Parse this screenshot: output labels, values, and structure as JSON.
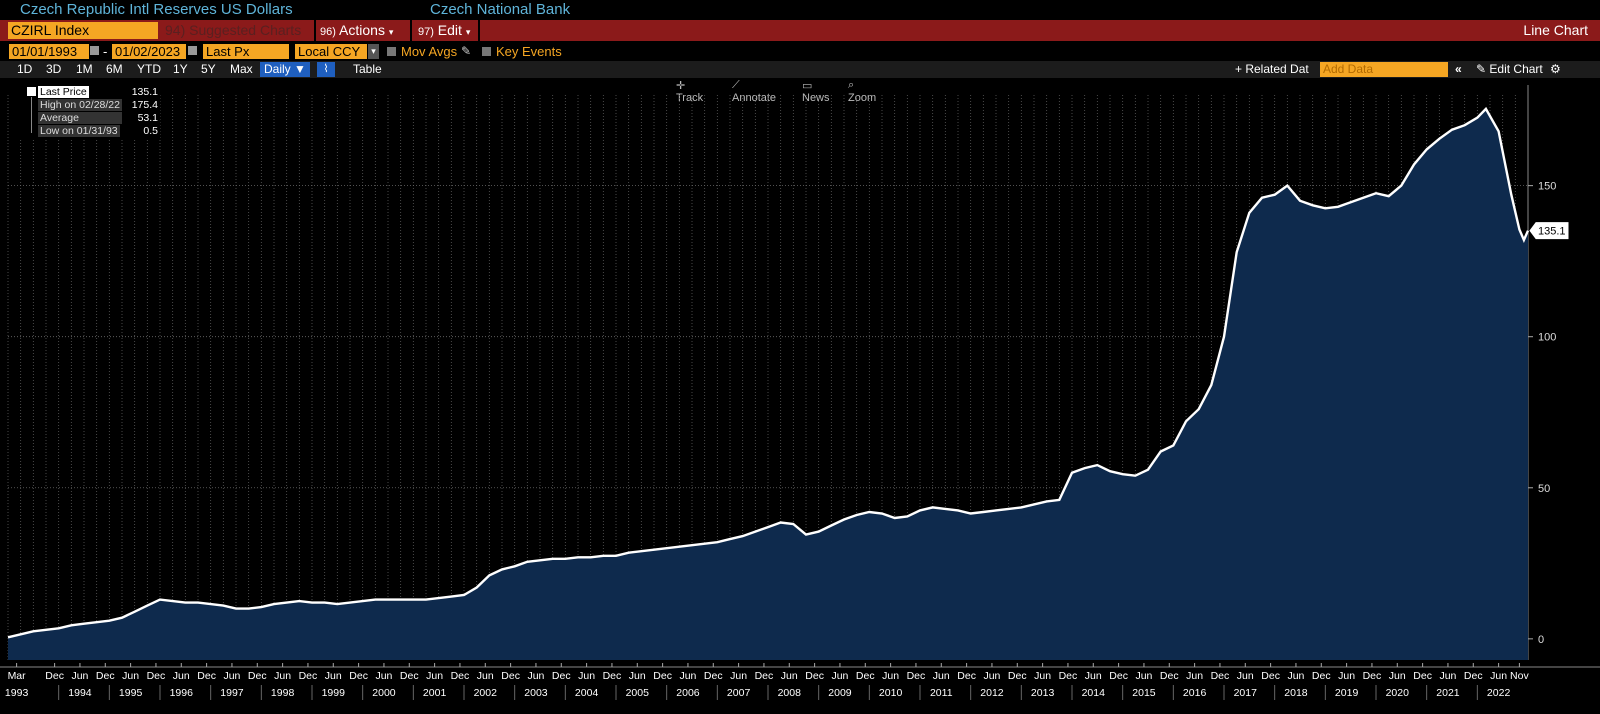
{
  "header": {
    "title": "Czech Republic Intl Reserves US Dollars",
    "source": "Czech National Bank"
  },
  "menu": {
    "ticker": "CZIRL Index",
    "suggested_num": "94)",
    "suggested": "Suggested Charts",
    "actions_num": "96)",
    "actions": "Actions",
    "edit_num": "97)",
    "edit": "Edit",
    "chart_type": "Line Chart"
  },
  "options": {
    "start_date": "01/01/1993",
    "end_date": "01/02/2023",
    "dash": "-",
    "field": "Last Px",
    "currency": "Local CCY",
    "mov_avgs": "Mov Avgs",
    "key_events": "Key Events"
  },
  "periods": {
    "items": [
      "1D",
      "3D",
      "1M",
      "6M",
      "YTD",
      "1Y",
      "5Y",
      "Max"
    ],
    "frequency": "Daily",
    "table": "Table",
    "related": "+ Related Dat",
    "add_data_placeholder": "Add Data",
    "edit_chart": "Edit Chart"
  },
  "tools": {
    "track": "Track",
    "annotate": "Annotate",
    "news": "News",
    "zoom": "Zoom"
  },
  "legend": {
    "last_label": "Last Price",
    "last_value": "135.1",
    "high_label": "High on 02/28/22",
    "high_value": "175.4",
    "avg_label": "Average",
    "avg_value": "53.1",
    "low_label": "Low on 01/31/93",
    "low_value": "0.5"
  },
  "chart_data": {
    "type": "area",
    "title": "Czech Republic Intl Reserves US Dollars",
    "x_range": [
      1993.0,
      2023.0
    ],
    "ylim": [
      -7,
      180
    ],
    "y_ticks": [
      0,
      50,
      100,
      150
    ],
    "last_value_label": "135.1",
    "x_tick_labels": [
      {
        "t": 1993.17,
        "month": "Mar",
        "year": "1993"
      },
      {
        "t": 1993.92,
        "month": "Dec",
        "year": ""
      },
      {
        "t": 1994.42,
        "month": "Jun",
        "year": "1994"
      },
      {
        "t": 1994.92,
        "month": "Dec",
        "year": ""
      },
      {
        "t": 1995.42,
        "month": "Jun",
        "year": "1995"
      },
      {
        "t": 1995.92,
        "month": "Dec",
        "year": ""
      },
      {
        "t": 1996.42,
        "month": "Jun",
        "year": "1996"
      },
      {
        "t": 1996.92,
        "month": "Dec",
        "year": ""
      },
      {
        "t": 1997.42,
        "month": "Jun",
        "year": "1997"
      },
      {
        "t": 1997.92,
        "month": "Dec",
        "year": ""
      },
      {
        "t": 1998.42,
        "month": "Jun",
        "year": "1998"
      },
      {
        "t": 1998.92,
        "month": "Dec",
        "year": ""
      },
      {
        "t": 1999.42,
        "month": "Jun",
        "year": "1999"
      },
      {
        "t": 1999.92,
        "month": "Dec",
        "year": ""
      },
      {
        "t": 2000.42,
        "month": "Jun",
        "year": "2000"
      },
      {
        "t": 2000.92,
        "month": "Dec",
        "year": ""
      },
      {
        "t": 2001.42,
        "month": "Jun",
        "year": "2001"
      },
      {
        "t": 2001.92,
        "month": "Dec",
        "year": ""
      },
      {
        "t": 2002.42,
        "month": "Jun",
        "year": "2002"
      },
      {
        "t": 2002.92,
        "month": "Dec",
        "year": ""
      },
      {
        "t": 2003.42,
        "month": "Jun",
        "year": "2003"
      },
      {
        "t": 2003.92,
        "month": "Dec",
        "year": ""
      },
      {
        "t": 2004.42,
        "month": "Jun",
        "year": "2004"
      },
      {
        "t": 2004.92,
        "month": "Dec",
        "year": ""
      },
      {
        "t": 2005.42,
        "month": "Jun",
        "year": "2005"
      },
      {
        "t": 2005.92,
        "month": "Dec",
        "year": ""
      },
      {
        "t": 2006.42,
        "month": "Jun",
        "year": "2006"
      },
      {
        "t": 2006.92,
        "month": "Dec",
        "year": ""
      },
      {
        "t": 2007.42,
        "month": "Jun",
        "year": "2007"
      },
      {
        "t": 2007.92,
        "month": "Dec",
        "year": ""
      },
      {
        "t": 2008.42,
        "month": "Jun",
        "year": "2008"
      },
      {
        "t": 2008.92,
        "month": "Dec",
        "year": ""
      },
      {
        "t": 2009.42,
        "month": "Jun",
        "year": "2009"
      },
      {
        "t": 2009.92,
        "month": "Dec",
        "year": ""
      },
      {
        "t": 2010.42,
        "month": "Jun",
        "year": "2010"
      },
      {
        "t": 2010.92,
        "month": "Dec",
        "year": ""
      },
      {
        "t": 2011.42,
        "month": "Jun",
        "year": "2011"
      },
      {
        "t": 2011.92,
        "month": "Dec",
        "year": ""
      },
      {
        "t": 2012.42,
        "month": "Jun",
        "year": "2012"
      },
      {
        "t": 2012.92,
        "month": "Dec",
        "year": ""
      },
      {
        "t": 2013.42,
        "month": "Jun",
        "year": "2013"
      },
      {
        "t": 2013.92,
        "month": "Dec",
        "year": ""
      },
      {
        "t": 2014.42,
        "month": "Jun",
        "year": "2014"
      },
      {
        "t": 2014.92,
        "month": "Dec",
        "year": ""
      },
      {
        "t": 2015.42,
        "month": "Jun",
        "year": "2015"
      },
      {
        "t": 2015.92,
        "month": "Dec",
        "year": ""
      },
      {
        "t": 2016.42,
        "month": "Jun",
        "year": "2016"
      },
      {
        "t": 2016.92,
        "month": "Dec",
        "year": ""
      },
      {
        "t": 2017.42,
        "month": "Jun",
        "year": "2017"
      },
      {
        "t": 2017.92,
        "month": "Dec",
        "year": ""
      },
      {
        "t": 2018.42,
        "month": "Jun",
        "year": "2018"
      },
      {
        "t": 2018.92,
        "month": "Dec",
        "year": ""
      },
      {
        "t": 2019.42,
        "month": "Jun",
        "year": "2019"
      },
      {
        "t": 2019.92,
        "month": "Dec",
        "year": ""
      },
      {
        "t": 2020.42,
        "month": "Jun",
        "year": "2020"
      },
      {
        "t": 2020.92,
        "month": "Dec",
        "year": ""
      },
      {
        "t": 2021.42,
        "month": "Jun",
        "year": "2021"
      },
      {
        "t": 2021.92,
        "month": "Dec",
        "year": ""
      },
      {
        "t": 2022.42,
        "month": "Jun",
        "year": "2022"
      },
      {
        "t": 2022.83,
        "month": "Nov",
        "year": ""
      }
    ],
    "series": [
      {
        "values": [
          [
            1993.0,
            0.5
          ],
          [
            1993.25,
            1.5
          ],
          [
            1993.5,
            2.5
          ],
          [
            1993.75,
            3.0
          ],
          [
            1994.0,
            3.5
          ],
          [
            1994.25,
            4.5
          ],
          [
            1994.5,
            5.0
          ],
          [
            1994.75,
            5.5
          ],
          [
            1995.0,
            6.0
          ],
          [
            1995.25,
            7.0
          ],
          [
            1995.5,
            9.0
          ],
          [
            1995.75,
            11.0
          ],
          [
            1996.0,
            13.0
          ],
          [
            1996.25,
            12.5
          ],
          [
            1996.5,
            12.0
          ],
          [
            1996.75,
            12.0
          ],
          [
            1997.0,
            11.5
          ],
          [
            1997.25,
            11.0
          ],
          [
            1997.5,
            10.0
          ],
          [
            1997.75,
            10.0
          ],
          [
            1998.0,
            10.5
          ],
          [
            1998.25,
            11.5
          ],
          [
            1998.5,
            12.0
          ],
          [
            1998.75,
            12.5
          ],
          [
            1999.0,
            12.0
          ],
          [
            1999.25,
            12.0
          ],
          [
            1999.5,
            11.5
          ],
          [
            1999.75,
            12.0
          ],
          [
            2000.0,
            12.5
          ],
          [
            2000.25,
            13.0
          ],
          [
            2000.5,
            13.0
          ],
          [
            2000.75,
            13.0
          ],
          [
            2001.0,
            13.0
          ],
          [
            2001.25,
            13.0
          ],
          [
            2001.5,
            13.5
          ],
          [
            2001.75,
            14.0
          ],
          [
            2002.0,
            14.5
          ],
          [
            2002.25,
            17.0
          ],
          [
            2002.5,
            21.0
          ],
          [
            2002.75,
            23.0
          ],
          [
            2003.0,
            24.0
          ],
          [
            2003.25,
            25.5
          ],
          [
            2003.5,
            26.0
          ],
          [
            2003.75,
            26.5
          ],
          [
            2004.0,
            26.5
          ],
          [
            2004.25,
            27.0
          ],
          [
            2004.5,
            27.0
          ],
          [
            2004.75,
            27.5
          ],
          [
            2005.0,
            27.5
          ],
          [
            2005.25,
            28.5
          ],
          [
            2005.5,
            29.0
          ],
          [
            2005.75,
            29.5
          ],
          [
            2006.0,
            30.0
          ],
          [
            2006.25,
            30.5
          ],
          [
            2006.5,
            31.0
          ],
          [
            2006.75,
            31.5
          ],
          [
            2007.0,
            32.0
          ],
          [
            2007.25,
            33.0
          ],
          [
            2007.5,
            34.0
          ],
          [
            2007.75,
            35.5
          ],
          [
            2008.0,
            37.0
          ],
          [
            2008.25,
            38.5
          ],
          [
            2008.5,
            38.0
          ],
          [
            2008.75,
            34.5
          ],
          [
            2009.0,
            35.5
          ],
          [
            2009.25,
            37.5
          ],
          [
            2009.5,
            39.5
          ],
          [
            2009.75,
            41.0
          ],
          [
            2010.0,
            42.0
          ],
          [
            2010.25,
            41.5
          ],
          [
            2010.5,
            40.0
          ],
          [
            2010.75,
            40.5
          ],
          [
            2011.0,
            42.5
          ],
          [
            2011.25,
            43.5
          ],
          [
            2011.5,
            43.0
          ],
          [
            2011.75,
            42.5
          ],
          [
            2012.0,
            41.5
          ],
          [
            2012.25,
            42.0
          ],
          [
            2012.5,
            42.5
          ],
          [
            2012.75,
            43.0
          ],
          [
            2013.0,
            43.5
          ],
          [
            2013.25,
            44.5
          ],
          [
            2013.5,
            45.5
          ],
          [
            2013.75,
            46.0
          ],
          [
            2014.0,
            55.0
          ],
          [
            2014.25,
            56.5
          ],
          [
            2014.5,
            57.5
          ],
          [
            2014.75,
            55.5
          ],
          [
            2015.0,
            54.5
          ],
          [
            2015.25,
            54.0
          ],
          [
            2015.5,
            56.0
          ],
          [
            2015.75,
            62.0
          ],
          [
            2016.0,
            64.0
          ],
          [
            2016.25,
            72.0
          ],
          [
            2016.5,
            76.0
          ],
          [
            2016.75,
            84.0
          ],
          [
            2017.0,
            100.0
          ],
          [
            2017.25,
            128.0
          ],
          [
            2017.5,
            141.0
          ],
          [
            2017.75,
            146.0
          ],
          [
            2018.0,
            147.0
          ],
          [
            2018.25,
            150.0
          ],
          [
            2018.5,
            145.0
          ],
          [
            2018.75,
            143.5
          ],
          [
            2019.0,
            142.5
          ],
          [
            2019.25,
            143.0
          ],
          [
            2019.5,
            144.5
          ],
          [
            2019.75,
            146.0
          ],
          [
            2020.0,
            147.5
          ],
          [
            2020.25,
            146.5
          ],
          [
            2020.5,
            150.0
          ],
          [
            2020.75,
            157.0
          ],
          [
            2021.0,
            162.0
          ],
          [
            2021.25,
            165.5
          ],
          [
            2021.5,
            168.5
          ],
          [
            2021.75,
            170.0
          ],
          [
            2022.0,
            172.5
          ],
          [
            2022.17,
            175.4
          ],
          [
            2022.42,
            168.0
          ],
          [
            2022.67,
            147.0
          ],
          [
            2022.83,
            135.5
          ],
          [
            2022.92,
            132.0
          ],
          [
            2023.0,
            135.1
          ]
        ]
      }
    ]
  }
}
